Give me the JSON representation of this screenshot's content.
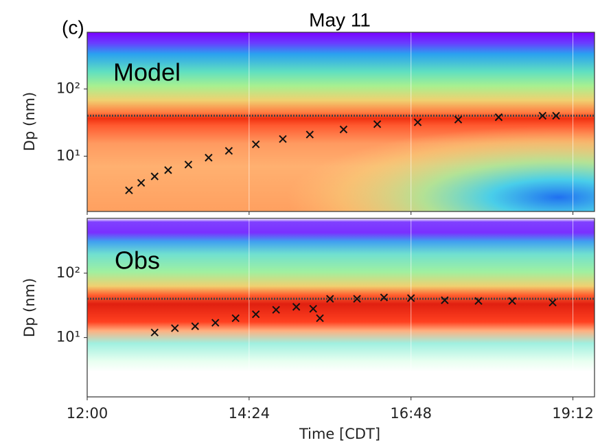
{
  "chart_data": [
    {
      "type": "scatter",
      "panel_label": "(c)",
      "title": "May 11",
      "annotation": "Model",
      "ylabel": "Dp (nm)",
      "yscale": "log",
      "xlim": [
        12,
        19.52
      ],
      "ylim": [
        1.5,
        700
      ],
      "xticks": [
        12,
        14.4,
        16.8,
        19.2
      ],
      "yticks": [
        {
          "value": 10,
          "label": "10¹"
        },
        {
          "value": 100,
          "label": "10²"
        }
      ],
      "grid": true,
      "hline": 40,
      "marker_color": "#111111",
      "x": [
        12.62,
        12.8,
        13.0,
        13.2,
        13.5,
        13.8,
        14.1,
        14.5,
        14.9,
        15.3,
        15.8,
        16.3,
        16.9,
        17.5,
        18.1,
        18.75,
        18.95
      ],
      "values": [
        3.1,
        4,
        5,
        6.2,
        7.5,
        9.5,
        12,
        15,
        18,
        21,
        25,
        30,
        32,
        35,
        38,
        40,
        40
      ]
    },
    {
      "type": "scatter",
      "annotation": "Obs",
      "ylabel": "Dp (nm)",
      "xlabel": "Time [CDT]",
      "yscale": "log",
      "xlim": [
        12,
        19.52
      ],
      "ylim": [
        1.2,
        710
      ],
      "xticks": [
        {
          "value": 12,
          "label": "12:00"
        },
        {
          "value": 14.4,
          "label": "14:24"
        },
        {
          "value": 16.8,
          "label": "16:48"
        },
        {
          "value": 19.2,
          "label": "19:12"
        }
      ],
      "yticks": [
        {
          "value": 10,
          "label": "10¹"
        },
        {
          "value": 100,
          "label": "10²"
        }
      ],
      "grid": true,
      "hline": 40,
      "marker_color": "#111111",
      "x": [
        13.0,
        13.3,
        13.6,
        13.9,
        14.2,
        14.5,
        14.8,
        15.1,
        15.35,
        15.45,
        15.6,
        16.0,
        16.4,
        16.8,
        17.3,
        17.8,
        18.3,
        18.9
      ],
      "values": [
        12,
        14,
        15,
        17,
        20,
        23,
        27,
        30,
        28,
        20,
        40,
        40,
        42,
        41,
        38,
        37,
        37,
        35
      ]
    }
  ]
}
